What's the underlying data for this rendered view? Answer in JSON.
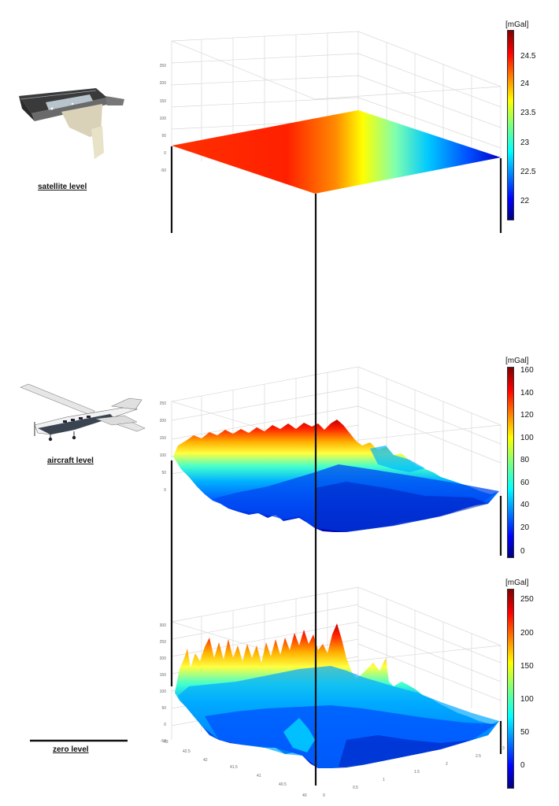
{
  "levels": {
    "satellite": {
      "label": "satellite level"
    },
    "aircraft": {
      "label": "aircraft level"
    },
    "zero": {
      "label": "zero level"
    }
  },
  "colorbars": {
    "satellite": {
      "unit": "[mGal]",
      "ticks": [
        "24.5",
        "24",
        "23.5",
        "23",
        "22.5",
        "22"
      ],
      "range": [
        21.6,
        24.9
      ]
    },
    "aircraft": {
      "unit": "[mGal]",
      "ticks": [
        "160",
        "140",
        "120",
        "100",
        "80",
        "60",
        "40",
        "20",
        "0"
      ],
      "range": [
        -7,
        165
      ]
    },
    "zero": {
      "unit": "[mGal]",
      "ticks": [
        "250",
        "200",
        "150",
        "100",
        "50",
        "0"
      ],
      "range": [
        -35,
        265
      ]
    }
  },
  "z_axis_ticks": {
    "satellite": [
      "250",
      "200",
      "150",
      "100",
      "50",
      "0",
      "-50"
    ],
    "aircraft": [
      "250",
      "200",
      "150",
      "100",
      "50",
      "0"
    ],
    "zero": [
      "300",
      "250",
      "200",
      "150",
      "100",
      "50",
      "0",
      "-50"
    ]
  },
  "ground_axis_ticks": {
    "latitude": [
      "43",
      "42.5",
      "42",
      "41.5",
      "41",
      "40.5",
      "40"
    ],
    "longitude": [
      "0",
      "0.5",
      "1",
      "1.5",
      "2",
      "2.5",
      "3"
    ]
  },
  "colors": {
    "jet": [
      "#00007f",
      "#0000ff",
      "#007fff",
      "#00ffff",
      "#7fff7f",
      "#ffff00",
      "#ff7f00",
      "#ff0000",
      "#7f0000"
    ],
    "frame": "#111111",
    "grid": "#d8d8d8"
  },
  "icons": {
    "satellite": "satellite-icon",
    "aircraft": "aircraft-icon"
  }
}
